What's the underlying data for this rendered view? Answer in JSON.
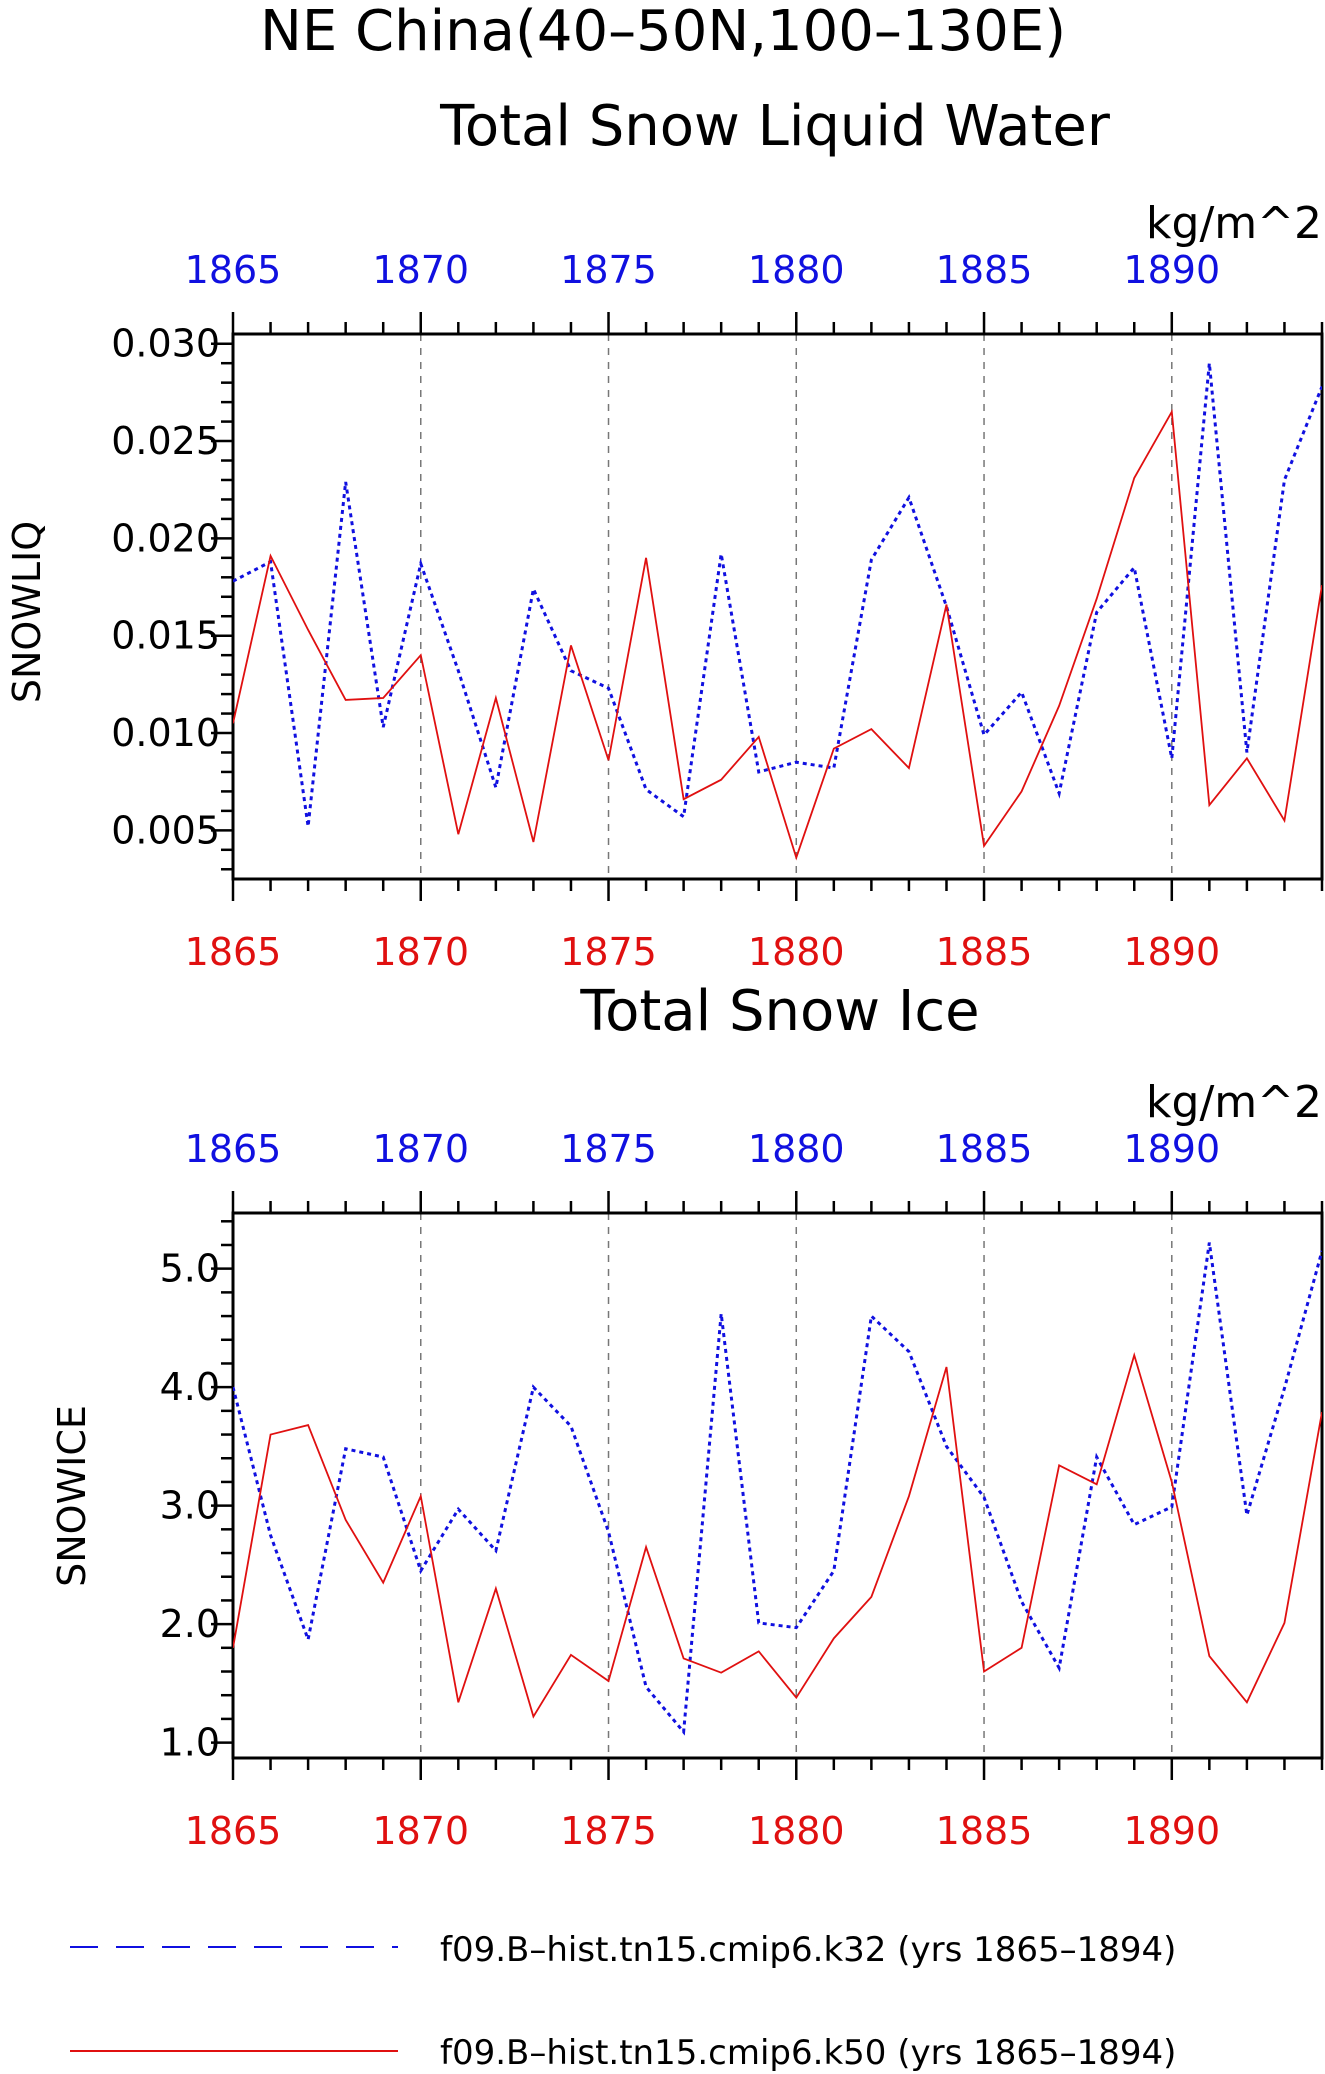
{
  "header": {
    "title_line1": "NE China(40–50N,100–130E)"
  },
  "colors": {
    "k32": "#1010e0",
    "k50": "#e01010",
    "axis": "#000000",
    "grid": "#777777"
  },
  "legend": {
    "k32_label": "f09.B–hist.tn15.cmip6.k32 (yrs 1865–1894)",
    "k50_label": "f09.B–hist.tn15.cmip6.k50 (yrs 1865–1894)"
  },
  "chart_data": [
    {
      "type": "line",
      "title": "Total Snow Liquid Water",
      "units": "kg/m^2",
      "ylabel": "SNOWLIQ",
      "xlabel": "",
      "xlim": [
        1865,
        1894
      ],
      "ylim": [
        0.0025,
        0.0305
      ],
      "yticks": [
        0.005,
        0.01,
        0.015,
        0.02,
        0.025,
        0.03
      ],
      "ytick_labels": [
        "0.005",
        "0.010",
        "0.015",
        "0.020",
        "0.025",
        "0.030"
      ],
      "xticks": [
        1865,
        1870,
        1875,
        1880,
        1885,
        1890
      ],
      "xtick_labels": [
        "1865",
        "1870",
        "1875",
        "1880",
        "1885",
        "1890"
      ],
      "grid": "vertical dashed at labeled years",
      "x": [
        1865,
        1866,
        1867,
        1868,
        1869,
        1870,
        1871,
        1872,
        1873,
        1874,
        1875,
        1876,
        1877,
        1878,
        1879,
        1880,
        1881,
        1882,
        1883,
        1884,
        1885,
        1886,
        1887,
        1888,
        1889,
        1890,
        1891,
        1892,
        1893,
        1894
      ],
      "series": [
        {
          "name": "k32",
          "style": "dashed",
          "color": "#1010e0",
          "values": [
            0.0178,
            0.0188,
            0.0052,
            0.0229,
            0.0103,
            0.0187,
            0.0132,
            0.0072,
            0.0174,
            0.0132,
            0.0123,
            0.0071,
            0.0057,
            0.0192,
            0.008,
            0.0085,
            0.0082,
            0.0189,
            0.0221,
            0.0165,
            0.0099,
            0.0121,
            0.0069,
            0.0162,
            0.0185,
            0.0087,
            0.029,
            0.009,
            0.023,
            0.0278
          ]
        },
        {
          "name": "k50",
          "style": "solid",
          "color": "#e01010",
          "values": [
            0.0105,
            0.0191,
            0.0153,
            0.0117,
            0.0118,
            0.014,
            0.0048,
            0.0118,
            0.0044,
            0.0145,
            0.0086,
            0.019,
            0.0066,
            0.0076,
            0.0098,
            0.0036,
            0.0092,
            0.0102,
            0.0082,
            0.0166,
            0.0042,
            0.007,
            0.0114,
            0.0169,
            0.0231,
            0.0265,
            0.0063,
            0.0087,
            0.0055,
            0.0176
          ]
        }
      ]
    },
    {
      "type": "line",
      "title": "Total Snow Ice",
      "units": "kg/m^2",
      "ylabel": "SNOWICE",
      "xlabel": "",
      "xlim": [
        1865,
        1894
      ],
      "ylim": [
        0.87,
        5.47
      ],
      "yticks": [
        1.0,
        2.0,
        3.0,
        4.0,
        5.0
      ],
      "ytick_labels": [
        "1.0",
        "2.0",
        "3.0",
        "4.0",
        "5.0"
      ],
      "xticks": [
        1865,
        1870,
        1875,
        1880,
        1885,
        1890
      ],
      "xtick_labels": [
        "1865",
        "1870",
        "1875",
        "1880",
        "1885",
        "1890"
      ],
      "grid": "vertical dashed at labeled years",
      "x": [
        1865,
        1866,
        1867,
        1868,
        1869,
        1870,
        1871,
        1872,
        1873,
        1874,
        1875,
        1876,
        1877,
        1878,
        1879,
        1880,
        1881,
        1882,
        1883,
        1884,
        1885,
        1886,
        1887,
        1888,
        1889,
        1890,
        1891,
        1892,
        1893,
        1894
      ],
      "series": [
        {
          "name": "k32",
          "style": "dashed",
          "color": "#1010e0",
          "values": [
            4.0,
            2.75,
            1.87,
            3.48,
            3.41,
            2.45,
            2.97,
            2.62,
            4.0,
            3.67,
            2.78,
            1.47,
            1.09,
            4.62,
            2.01,
            1.97,
            2.45,
            4.6,
            4.3,
            3.5,
            3.07,
            2.19,
            1.63,
            3.41,
            2.84,
            2.99,
            5.22,
            2.92,
            3.99,
            5.15
          ]
        },
        {
          "name": "k50",
          "style": "solid",
          "color": "#e01010",
          "values": [
            1.8,
            3.6,
            3.68,
            2.88,
            2.35,
            3.08,
            1.34,
            2.3,
            1.22,
            1.74,
            1.52,
            2.65,
            1.71,
            1.59,
            1.77,
            1.38,
            1.88,
            2.23,
            3.08,
            4.17,
            1.6,
            1.8,
            3.34,
            3.18,
            4.27,
            3.2,
            1.73,
            1.34,
            2.01,
            3.79
          ]
        }
      ]
    }
  ]
}
